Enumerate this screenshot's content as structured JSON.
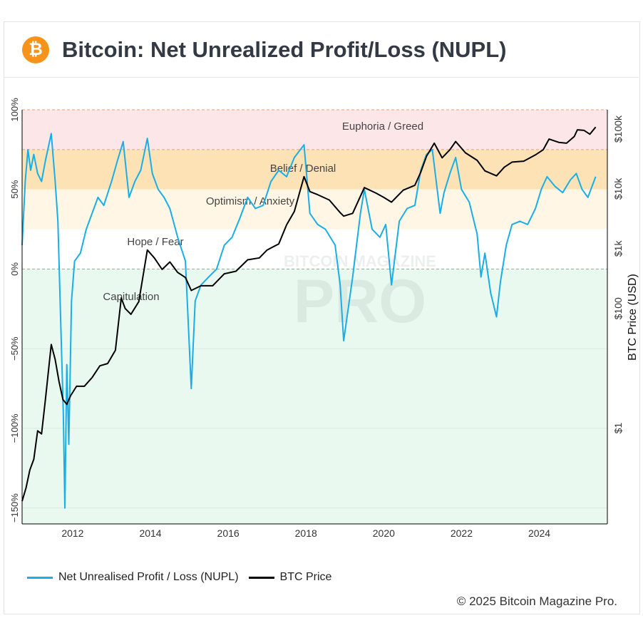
{
  "header": {
    "title": "Bitcoin: Net Unrealized Profit/Loss (NUPL)",
    "icon": "bitcoin-icon"
  },
  "footer": {
    "copyright": "© 2025 Bitcoin Magazine Pro."
  },
  "watermark": {
    "line1": "BITCOIN MAGAZINE",
    "line2": "PRO"
  },
  "chart_data": {
    "type": "line",
    "title": "Bitcoin: Net Unrealized Profit/Loss (NUPL)",
    "xlabel": "",
    "ylabel_left": "",
    "ylabel_right": "BTC Price (USD)",
    "xlim": [
      2010.7,
      2025.75
    ],
    "ylim_left": [
      -160,
      100
    ],
    "ylim_right_log": [
      0.025,
      210000
    ],
    "x_ticks": [
      "2012",
      "2014",
      "2016",
      "2018",
      "2020",
      "2022",
      "2024"
    ],
    "x_tick_values": [
      2012,
      2014,
      2016,
      2018,
      2020,
      2022,
      2024
    ],
    "y_left_ticks": [
      "100%",
      "50%",
      "0%",
      "−50%",
      "−100%",
      "−150%"
    ],
    "y_left_tick_values": [
      100,
      50,
      0,
      -50,
      -100,
      -150
    ],
    "y_right_ticks": [
      "$100k",
      "$10k",
      "$1k",
      "$100",
      "$1"
    ],
    "y_right_tick_values": [
      100000,
      10000,
      1000,
      100,
      1
    ],
    "zones": [
      {
        "label": "Euphoria / Greed",
        "from": 75,
        "to": 100,
        "color": "#fde6e8"
      },
      {
        "label": "Belief / Denial",
        "from": 50,
        "to": 75,
        "color": "#fde2b6"
      },
      {
        "label": "Optimism / Anxiety",
        "from": 25,
        "to": 50,
        "color": "#fff6e6"
      },
      {
        "label": "Hope / Fear",
        "from": 0,
        "to": 25,
        "color": "#ffffff"
      },
      {
        "label": "Capitulation",
        "from": -160,
        "to": 0,
        "color": "#e9f9f0"
      }
    ],
    "legend_position": "bottom-left",
    "series": [
      {
        "name": "Net Unrealised Profit / Loss (NUPL)",
        "axis": "left",
        "color": "#1aaee6",
        "x": [
          2010.7,
          2010.78,
          2010.85,
          2010.92,
          2011.0,
          2011.1,
          2011.2,
          2011.3,
          2011.45,
          2011.55,
          2011.62,
          2011.7,
          2011.76,
          2011.8,
          2011.85,
          2011.9,
          2011.97,
          2012.05,
          2012.2,
          2012.35,
          2012.5,
          2012.65,
          2012.8,
          2013.0,
          2013.15,
          2013.3,
          2013.45,
          2013.6,
          2013.75,
          2013.92,
          2014.05,
          2014.2,
          2014.35,
          2014.5,
          2014.7,
          2014.9,
          2015.05,
          2015.15,
          2015.3,
          2015.5,
          2015.7,
          2015.9,
          2016.1,
          2016.3,
          2016.5,
          2016.7,
          2016.9,
          2017.1,
          2017.3,
          2017.5,
          2017.7,
          2017.95,
          2018.1,
          2018.3,
          2018.5,
          2018.75,
          2018.88,
          2018.97,
          2019.2,
          2019.4,
          2019.5,
          2019.7,
          2019.9,
          2020.05,
          2020.2,
          2020.4,
          2020.6,
          2020.8,
          2020.95,
          2021.1,
          2021.25,
          2021.45,
          2021.55,
          2021.7,
          2021.85,
          2022.0,
          2022.2,
          2022.4,
          2022.5,
          2022.6,
          2022.75,
          2022.9,
          2023.0,
          2023.15,
          2023.3,
          2023.5,
          2023.7,
          2023.9,
          2024.05,
          2024.2,
          2024.4,
          2024.6,
          2024.8,
          2024.95,
          2025.1,
          2025.25,
          2025.45
        ],
        "y": [
          15,
          55,
          75,
          62,
          72,
          60,
          55,
          68,
          85,
          55,
          30,
          -40,
          -90,
          -150,
          -60,
          -110,
          -20,
          5,
          10,
          25,
          35,
          45,
          40,
          55,
          68,
          80,
          45,
          55,
          62,
          82,
          60,
          50,
          45,
          38,
          20,
          5,
          -75,
          -20,
          -10,
          -5,
          0,
          15,
          20,
          32,
          45,
          38,
          40,
          55,
          62,
          58,
          70,
          78,
          35,
          28,
          25,
          15,
          -10,
          -45,
          -5,
          35,
          50,
          25,
          20,
          28,
          -10,
          30,
          38,
          40,
          62,
          72,
          75,
          35,
          48,
          60,
          70,
          50,
          42,
          22,
          -5,
          10,
          -15,
          -30,
          -8,
          15,
          28,
          30,
          28,
          38,
          50,
          58,
          52,
          48,
          56,
          60,
          50,
          45,
          58
        ]
      },
      {
        "name": "BTC Price",
        "axis": "right",
        "color": "#000000",
        "x": [
          2010.7,
          2010.8,
          2010.9,
          2011.0,
          2011.1,
          2011.2,
          2011.3,
          2011.45,
          2011.55,
          2011.65,
          2011.75,
          2011.85,
          2011.95,
          2012.1,
          2012.3,
          2012.5,
          2012.7,
          2012.9,
          2013.1,
          2013.25,
          2013.35,
          2013.5,
          2013.7,
          2013.92,
          2014.1,
          2014.3,
          2014.5,
          2014.7,
          2014.9,
          2015.05,
          2015.3,
          2015.6,
          2015.9,
          2016.2,
          2016.5,
          2016.8,
          2017.0,
          2017.3,
          2017.5,
          2017.7,
          2017.95,
          2018.1,
          2018.3,
          2018.6,
          2018.88,
          2018.97,
          2019.2,
          2019.5,
          2019.8,
          2020.0,
          2020.2,
          2020.5,
          2020.8,
          2020.95,
          2021.1,
          2021.3,
          2021.5,
          2021.7,
          2021.85,
          2022.1,
          2022.4,
          2022.6,
          2022.9,
          2023.1,
          2023.3,
          2023.6,
          2023.9,
          2024.1,
          2024.25,
          2024.5,
          2024.7,
          2024.9,
          2024.98,
          2025.15,
          2025.3,
          2025.45
        ],
        "y": [
          0.06,
          0.1,
          0.2,
          0.3,
          0.9,
          0.8,
          3,
          25,
          14,
          6,
          3,
          2.5,
          3.5,
          5,
          5,
          7,
          11,
          12,
          20,
          150,
          100,
          80,
          130,
          950,
          700,
          450,
          600,
          400,
          330,
          200,
          240,
          240,
          380,
          420,
          650,
          700,
          950,
          1200,
          2500,
          4200,
          16000,
          9000,
          8000,
          6500,
          4000,
          3500,
          3900,
          10500,
          8500,
          7200,
          6000,
          9500,
          11500,
          19000,
          35000,
          58000,
          33000,
          45000,
          62000,
          40000,
          30000,
          20000,
          16500,
          23000,
          28000,
          29000,
          37000,
          45000,
          68000,
          60000,
          58000,
          75000,
          97000,
          95000,
          82000,
          108000
        ]
      }
    ]
  }
}
